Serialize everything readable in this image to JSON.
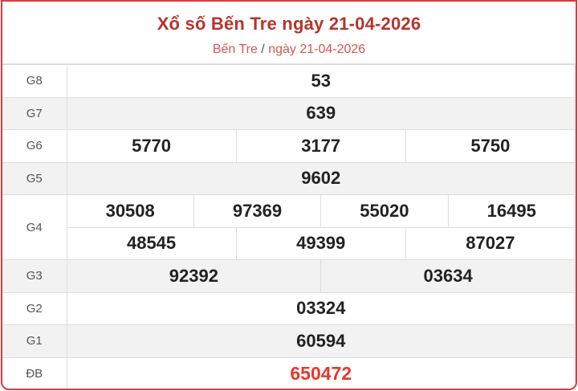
{
  "header": {
    "title": "Xổ số Bến Tre ngày 21-04-2026",
    "breadcrumb_province": "Bến Tre",
    "breadcrumb_sep": "/",
    "breadcrumb_date": "ngày 21-04-2026"
  },
  "colors": {
    "accent": "#e0393e",
    "title": "#b5342c",
    "special_prize": "#e8382c"
  },
  "prizes": {
    "g8": {
      "label": "G8",
      "values": [
        "53"
      ]
    },
    "g7": {
      "label": "G7",
      "values": [
        "639"
      ]
    },
    "g6": {
      "label": "G6",
      "values": [
        "5770",
        "3177",
        "5750"
      ]
    },
    "g5": {
      "label": "G5",
      "values": [
        "9602"
      ]
    },
    "g4": {
      "label": "G4",
      "values": [
        "30508",
        "97369",
        "55020",
        "16495",
        "48545",
        "49399",
        "87027"
      ]
    },
    "g3": {
      "label": "G3",
      "values": [
        "92392",
        "03634"
      ]
    },
    "g2": {
      "label": "G2",
      "values": [
        "03324"
      ]
    },
    "g1": {
      "label": "G1",
      "values": [
        "60594"
      ]
    },
    "db": {
      "label": "ĐB",
      "values": [
        "650472"
      ]
    }
  }
}
